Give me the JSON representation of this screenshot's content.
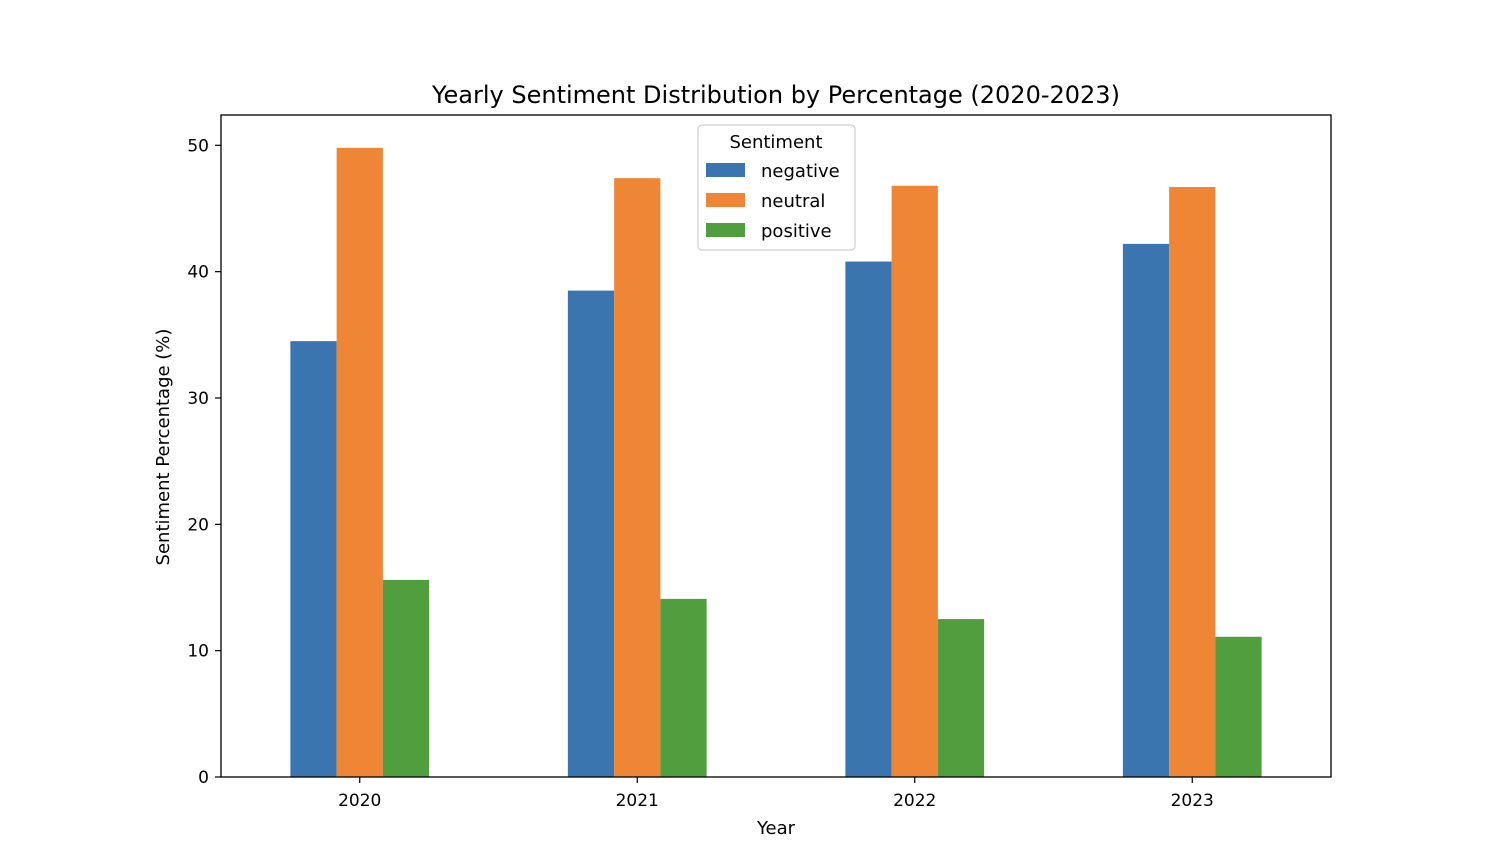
{
  "chart_data": {
    "type": "bar",
    "title": "Yearly Sentiment Distribution by Percentage (2020-2023)",
    "xlabel": "Year",
    "ylabel": "Sentiment Percentage (%)",
    "categories": [
      "2020",
      "2021",
      "2022",
      "2023"
    ],
    "ylim": [
      0,
      52.4
    ],
    "yticks": [
      "0",
      "10",
      "20",
      "30",
      "40",
      "50"
    ],
    "grid": false,
    "legend": {
      "title": "Sentiment",
      "placement": "upper-center"
    },
    "series": [
      {
        "name": "negative",
        "color": "#3a75af",
        "values": [
          34.5,
          38.5,
          40.8,
          42.2
        ]
      },
      {
        "name": "neutral",
        "color": "#ef8636",
        "values": [
          49.8,
          47.4,
          46.8,
          46.7
        ]
      },
      {
        "name": "positive",
        "color": "#519e3e",
        "values": [
          15.6,
          14.1,
          12.5,
          11.1
        ]
      }
    ]
  }
}
